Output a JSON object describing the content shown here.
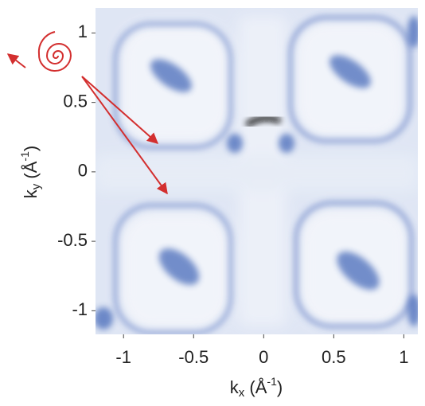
{
  "chart_data": {
    "type": "image",
    "xlabel": [
      "k",
      "x",
      " (Å",
      "-1",
      ")"
    ],
    "ylabel": [
      "k",
      "y",
      " (Å",
      "-1",
      ")"
    ],
    "xlim": [
      -1.2,
      1.1
    ],
    "ylim": [
      -1.17,
      1.18
    ],
    "xticks": [
      -1,
      -0.5,
      0,
      0.5,
      1
    ],
    "yticks": [
      -1,
      -0.5,
      0,
      0.5,
      1
    ]
  }
}
